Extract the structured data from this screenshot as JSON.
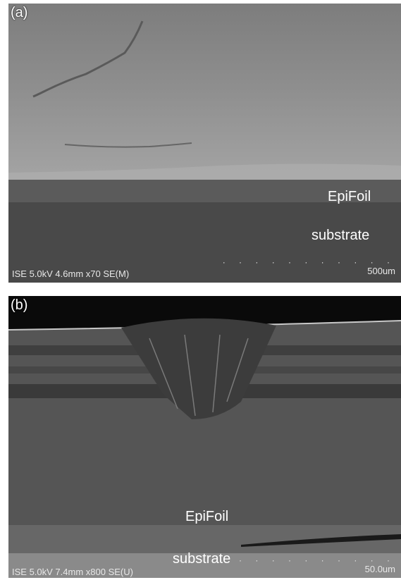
{
  "panel_a": {
    "label": "(a)",
    "region_top": "EpiFoil",
    "region_bottom": "substrate",
    "info": "ISE 5.0kV 4.6mm x70 SE(M)",
    "scale": "500um"
  },
  "panel_b": {
    "label": "(b)",
    "region_top": "EpiFoil",
    "region_bottom": "substrate",
    "info": "ISE 5.0kV 7.4mm x800 SE(U)",
    "scale": "50.0um"
  }
}
